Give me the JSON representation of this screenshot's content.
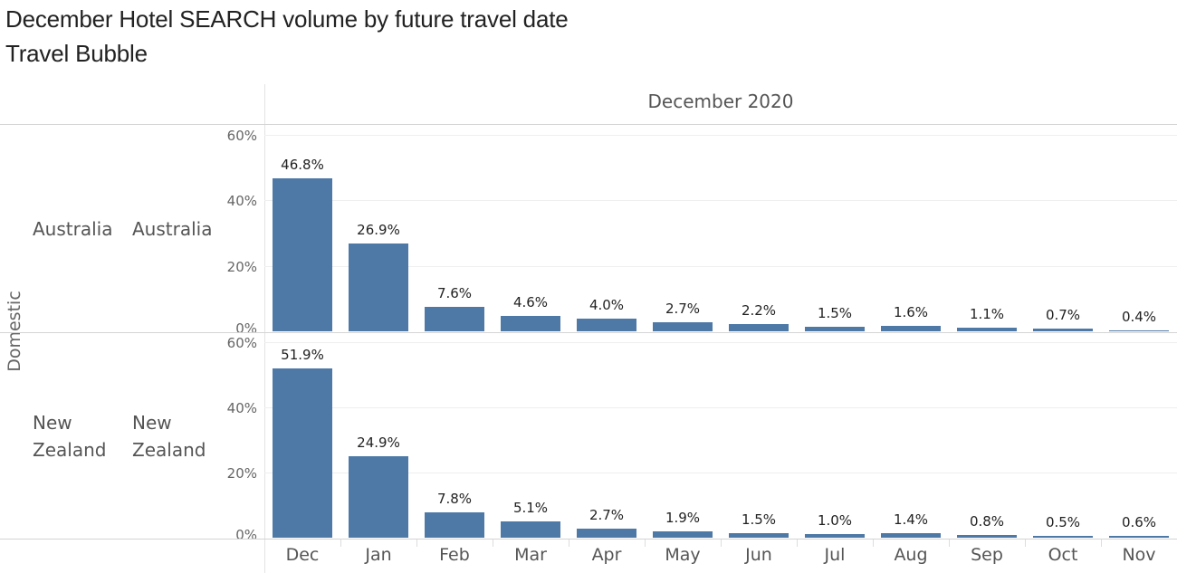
{
  "title": "December Hotel SEARCH volume by future travel date",
  "subtitle": "Travel Bubble",
  "column_header": "December 2020",
  "row_group_label": "Domestic",
  "panels": [
    {
      "origin": "Australia",
      "destination": "Australia"
    },
    {
      "origin": "New Zealand",
      "destination": "New Zealand"
    }
  ],
  "y_ticks": [
    "0%",
    "20%",
    "40%",
    "60%"
  ],
  "chart_data": {
    "type": "bar",
    "title": "December Hotel SEARCH volume by future travel date",
    "subtitle": "Travel Bubble",
    "column_header": "December 2020",
    "row_group": "Domestic",
    "categories": [
      "Dec",
      "Jan",
      "Feb",
      "Mar",
      "Apr",
      "May",
      "Jun",
      "Jul",
      "Aug",
      "Sep",
      "Oct",
      "Nov"
    ],
    "series": [
      {
        "name": "Australia - Australia",
        "values": [
          46.8,
          26.9,
          7.6,
          4.6,
          4.0,
          2.7,
          2.2,
          1.5,
          1.6,
          1.1,
          0.7,
          0.4
        ],
        "labels": [
          "46.8%",
          "26.9%",
          "7.6%",
          "4.6%",
          "4.0%",
          "2.7%",
          "2.2%",
          "1.5%",
          "1.6%",
          "1.1%",
          "0.7%",
          "0.4%"
        ]
      },
      {
        "name": "New Zealand - New Zealand",
        "values": [
          51.9,
          24.9,
          7.8,
          5.1,
          2.7,
          1.9,
          1.5,
          1.0,
          1.4,
          0.8,
          0.5,
          0.6
        ],
        "labels": [
          "51.9%",
          "24.9%",
          "7.8%",
          "5.1%",
          "2.7%",
          "1.9%",
          "1.5%",
          "1.0%",
          "1.4%",
          "0.8%",
          "0.5%",
          "0.6%"
        ]
      }
    ],
    "xlabel": "",
    "ylabel": "",
    "ylim": [
      0,
      60
    ],
    "y_tick_labels": [
      "0%",
      "20%",
      "40%",
      "60%"
    ],
    "grid": true,
    "legend": "none",
    "bar_color": "#4e79a7"
  }
}
